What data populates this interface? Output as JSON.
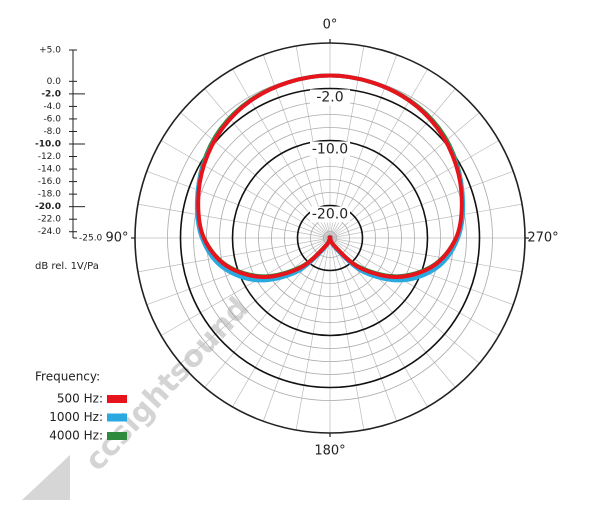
{
  "chart_data": {
    "type": "polar",
    "radial_unit": "dB rel. 1V/Pa",
    "rlim": [
      -25,
      5
    ],
    "rticks": [
      {
        "value": 5,
        "label": "+5.0"
      },
      {
        "value": 0,
        "label": "0.0"
      },
      {
        "value": -2,
        "label": "-2.0"
      },
      {
        "value": -4,
        "label": "-4.0"
      },
      {
        "value": -6,
        "label": "-6.0"
      },
      {
        "value": -8,
        "label": "-8.0"
      },
      {
        "value": -10,
        "label": "-10.0"
      },
      {
        "value": -12,
        "label": "-12.0"
      },
      {
        "value": -14,
        "label": "-14.0"
      },
      {
        "value": -16,
        "label": "-16.0"
      },
      {
        "value": -18,
        "label": "-18.0"
      },
      {
        "value": -20,
        "label": "-20.0"
      },
      {
        "value": -22,
        "label": "-22.0"
      },
      {
        "value": -24,
        "label": "-24.0"
      },
      {
        "value": -25,
        "label": "-25.0"
      }
    ],
    "highlight_rings": [
      {
        "value": -2,
        "label": "-2.0"
      },
      {
        "value": -10,
        "label": "-10.0"
      },
      {
        "value": -20,
        "label": "-20.0"
      }
    ],
    "thetaticks": [
      {
        "value": 0,
        "label": "0°"
      },
      {
        "value": 90,
        "label": "90°"
      },
      {
        "value": 180,
        "label": "180°"
      },
      {
        "value": 270,
        "label": "270°"
      }
    ],
    "x": [
      0,
      15,
      30,
      45,
      60,
      75,
      90,
      105,
      120,
      135,
      150,
      165,
      180,
      195,
      210,
      225,
      240,
      255,
      270,
      285,
      300,
      315,
      330,
      345
    ],
    "legend_title": "Frequency:",
    "series": [
      {
        "name": "4000 Hz:",
        "color": "#2e8b3e",
        "values": [
          0,
          -0.2,
          -0.5,
          -1.2,
          -2.4,
          -3.9,
          -5.6,
          -8.6,
          -13.2,
          -18.8,
          -23.6,
          -25,
          -25,
          -25,
          -23.6,
          -18.8,
          -13.2,
          -8.6,
          -5.6,
          -3.9,
          -2.4,
          -1.2,
          -0.5,
          -0.2
        ]
      },
      {
        "name": "1000 Hz:",
        "color": "#2aa9e0",
        "values": [
          0,
          -0.2,
          -0.6,
          -1.4,
          -2.5,
          -3.8,
          -5.3,
          -7.8,
          -12,
          -17.5,
          -23,
          -25,
          -25,
          -25,
          -23,
          -17.5,
          -12,
          -7.8,
          -5.3,
          -3.8,
          -2.5,
          -1.4,
          -0.6,
          -0.2
        ]
      },
      {
        "name": "500 Hz:",
        "color": "#e8141c",
        "values": [
          0,
          -0.2,
          -0.6,
          -1.4,
          -2.6,
          -4,
          -5.6,
          -8.5,
          -13,
          -18.5,
          -23.5,
          -25,
          -25,
          -25,
          -23.5,
          -18.5,
          -13,
          -8.5,
          -5.6,
          -4,
          -2.6,
          -1.4,
          -0.6,
          -0.2
        ]
      }
    ],
    "watermark": "ccsightsound"
  }
}
